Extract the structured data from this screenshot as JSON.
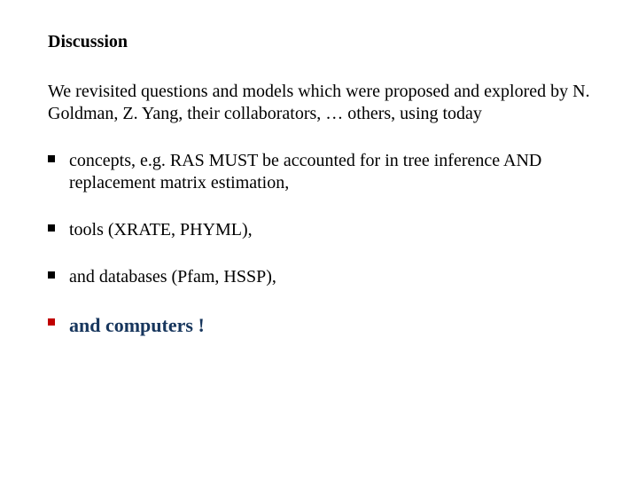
{
  "title": "Discussion",
  "intro": "We revisited questions and models which were proposed and explored by N. Goldman, Z. Yang, their collaborators, … others, using today",
  "bullets": {
    "b1": "concepts, e.g. RAS MUST be accounted for in tree inference AND replacement matrix estimation,",
    "b2": "tools (XRATE, PHYML),",
    "b3": "and databases (Pfam, HSSP),",
    "b4": "and computers !"
  },
  "colors": {
    "text": "#000000",
    "bullet": "#000000",
    "bullet_emph": "#c00000",
    "emph_text": "#17365d",
    "background": "#ffffff"
  },
  "fonts": {
    "family": "Times New Roman",
    "title_size_pt": 20,
    "body_size_pt": 20,
    "emph_size_pt": 22
  }
}
